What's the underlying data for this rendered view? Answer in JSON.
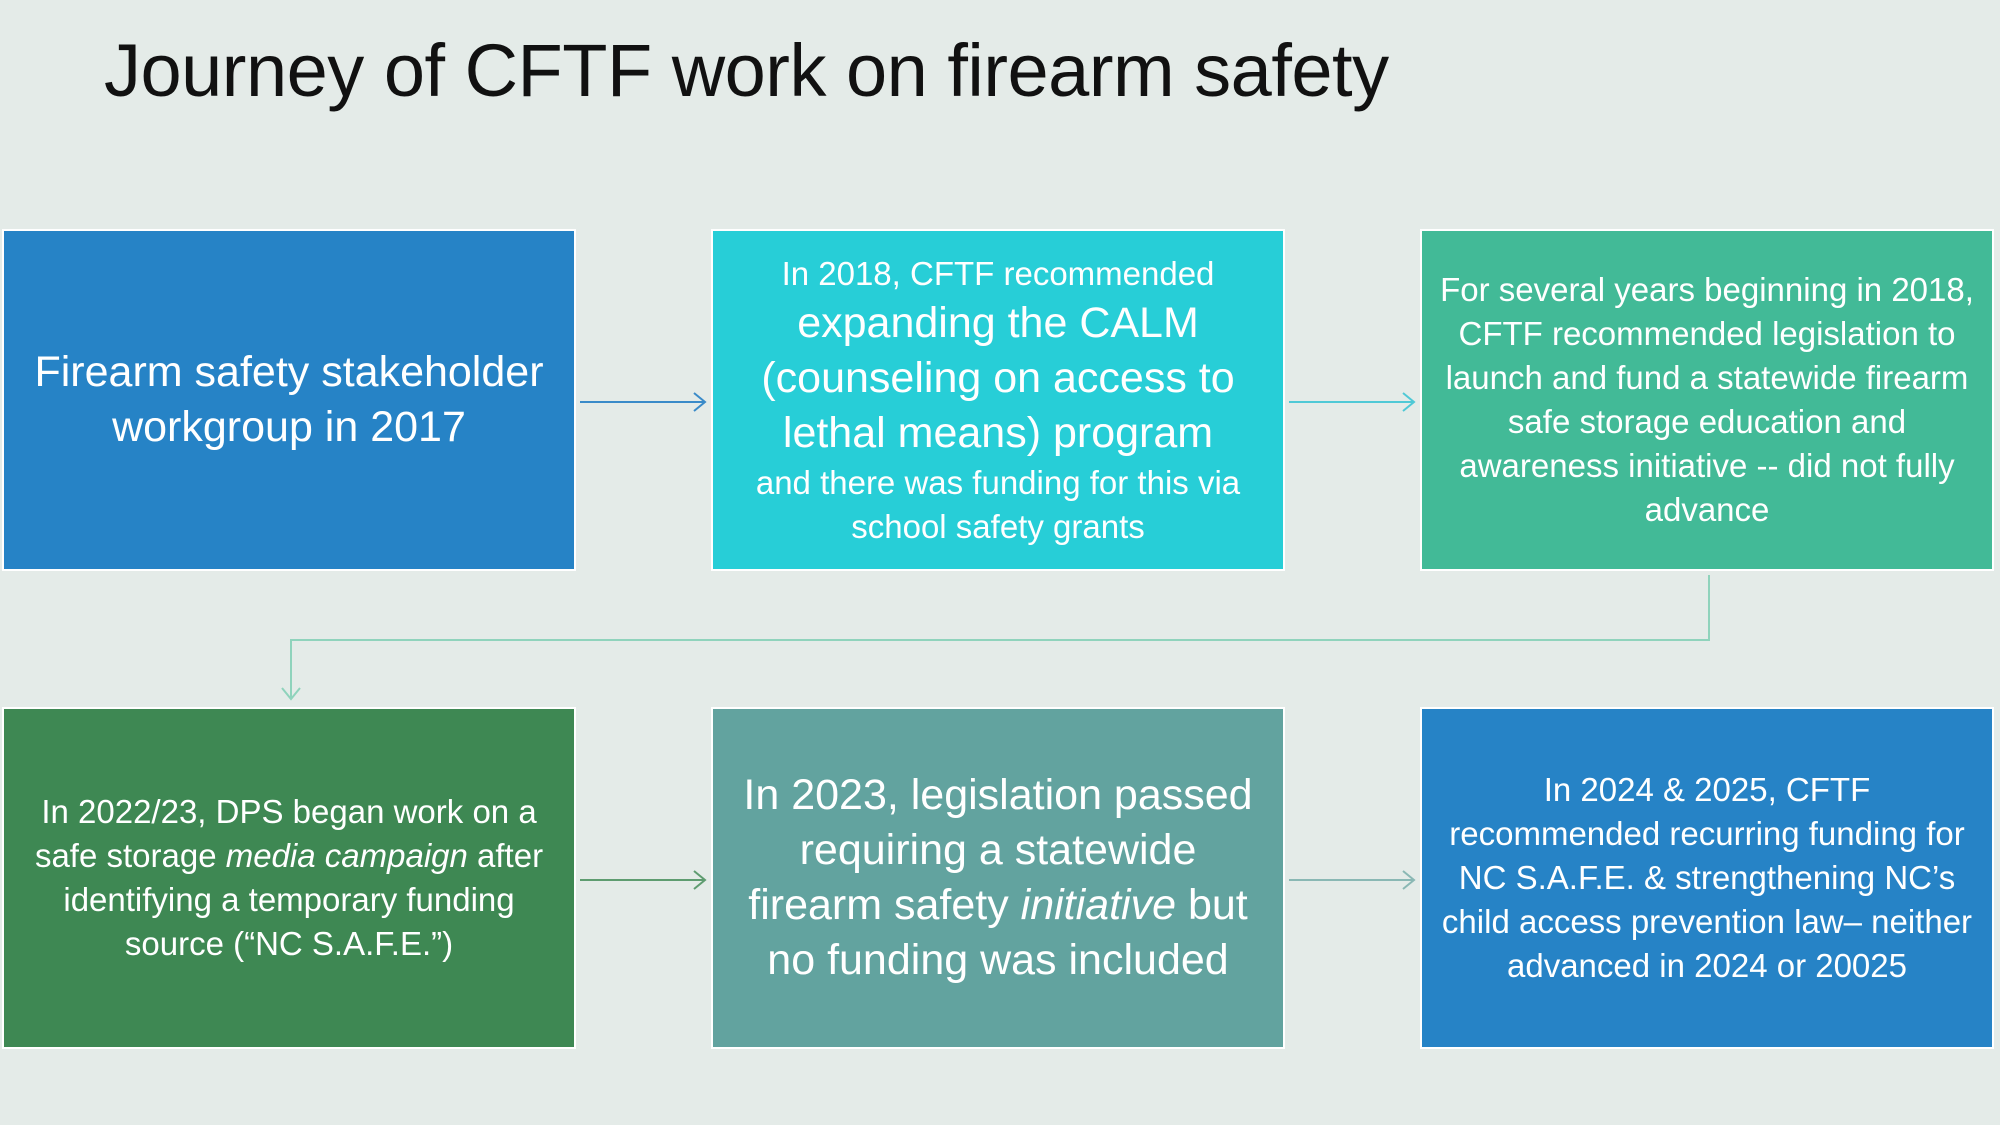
{
  "title": "Journey of CFTF work on firearm safety",
  "colors": {
    "background": "#E4EBE8",
    "blue": "#2683C6",
    "cyan": "#27CED7",
    "teal_green": "#42BA97",
    "dark_green": "#3E8853",
    "gray_teal": "#62A39F"
  },
  "boxes": [
    {
      "lines": [
        {
          "text": "Firearm safety stakeholder workgroup in 2017"
        }
      ]
    },
    {
      "lines": [
        {
          "text": "In 2018, CFTF recommended"
        },
        {
          "text": "expanding the CALM (counseling on access to lethal means) program"
        },
        {
          "text": "and there was funding for this via school safety grants"
        }
      ]
    },
    {
      "lines": [
        {
          "text": "For several years beginning in 2018, CFTF recommended legislation to launch and fund a statewide firearm safe storage education and awareness initiative -- did not fully advance"
        }
      ]
    },
    {
      "lines": [
        {
          "a": "In 2022/23, DPS began work on a safe storage ",
          "i": "media campaign",
          "b": " after identifying a temporary funding source (“NC S.A.F.E.”)"
        }
      ]
    },
    {
      "lines": [
        {
          "a": "In 2023, legislation passed requiring a statewide firearm safety ",
          "i": "initiative",
          "b": " but no funding was included"
        }
      ]
    },
    {
      "lines": [
        {
          "text": "In 2024 & 2025, CFTF recommended recurring funding for NC S.A.F.E. & strengthening NC’s child access prevention law– neither advanced in 2024 or 20025"
        }
      ]
    }
  ]
}
